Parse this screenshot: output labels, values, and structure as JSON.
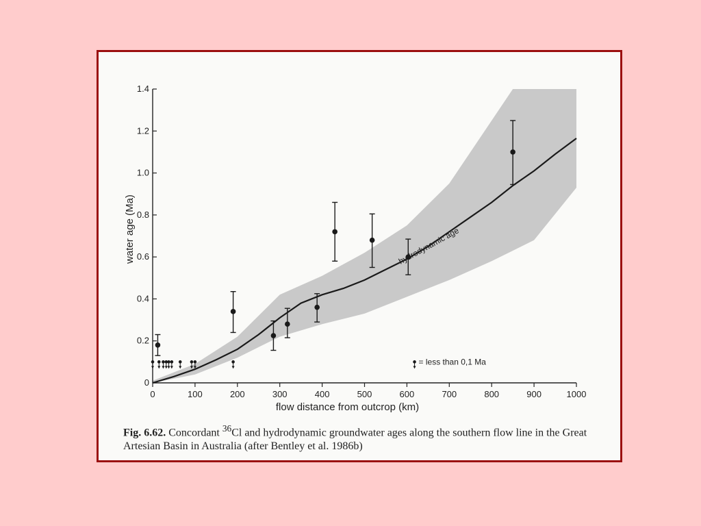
{
  "chart_data": {
    "type": "scatter",
    "xlabel": "flow distance from outcrop (km)",
    "ylabel": "water age (Ma)",
    "xlim": [
      0,
      1000
    ],
    "ylim": [
      0,
      1.4
    ],
    "x_ticks": [
      "0",
      "100",
      "200",
      "300",
      "400",
      "500",
      "600",
      "700",
      "800",
      "900",
      "1000"
    ],
    "y_ticks": [
      "0",
      "0.2",
      "0.4",
      "0.6",
      "0.8",
      "1.0",
      "1.2",
      "1.4"
    ],
    "x_tick_values": [
      0,
      100,
      200,
      300,
      400,
      500,
      600,
      700,
      800,
      900,
      1000
    ],
    "y_tick_values": [
      0,
      0.2,
      0.4,
      0.6,
      0.8,
      1.0,
      1.2,
      1.4
    ],
    "points": [
      {
        "x": 12,
        "y": 0.18,
        "low": 0.13,
        "high": 0.23
      },
      {
        "x": 190,
        "y": 0.34,
        "low": 0.24,
        "high": 0.435
      },
      {
        "x": 285,
        "y": 0.225,
        "low": 0.155,
        "high": 0.295
      },
      {
        "x": 318,
        "y": 0.28,
        "low": 0.215,
        "high": 0.355
      },
      {
        "x": 388,
        "y": 0.36,
        "low": 0.29,
        "high": 0.425
      },
      {
        "x": 430,
        "y": 0.72,
        "low": 0.58,
        "high": 0.86
      },
      {
        "x": 518,
        "y": 0.68,
        "low": 0.55,
        "high": 0.805
      },
      {
        "x": 603,
        "y": 0.6,
        "low": 0.515,
        "high": 0.685
      },
      {
        "x": 850,
        "y": 1.1,
        "low": 0.945,
        "high": 1.25
      }
    ],
    "below_limit_points_x": [
      0,
      15,
      25,
      32,
      38,
      45,
      65,
      92,
      100,
      190
    ],
    "below_limit_legend_x": 618,
    "below_limit_label": "= less than 0,1 Ma",
    "hydrodynamic_age": {
      "label": "hydrodynamic age",
      "x": [
        0,
        50,
        100,
        150,
        200,
        250,
        300,
        350,
        400,
        450,
        500,
        550,
        600,
        650,
        700,
        750,
        800,
        850,
        900,
        950,
        1000
      ],
      "y": [
        0.0,
        0.03,
        0.065,
        0.11,
        0.16,
        0.23,
        0.31,
        0.38,
        0.42,
        0.45,
        0.49,
        0.54,
        0.59,
        0.65,
        0.72,
        0.79,
        0.86,
        0.94,
        1.01,
        1.09,
        1.165
      ]
    },
    "uncertainty_band": {
      "x": [
        0,
        100,
        200,
        300,
        400,
        500,
        600,
        700,
        800,
        850,
        900,
        1000
      ],
      "upper": [
        0.01,
        0.09,
        0.22,
        0.42,
        0.51,
        0.62,
        0.75,
        0.95,
        1.25,
        1.4,
        1.4,
        1.4
      ],
      "lower": [
        0.0,
        0.04,
        0.12,
        0.22,
        0.28,
        0.33,
        0.41,
        0.49,
        0.58,
        0.63,
        0.68,
        0.93
      ]
    }
  },
  "caption": {
    "fig_label": "Fig. 6.62.",
    "text_before_sup": " Concordant ",
    "sup": "36",
    "text_after_sup": "Cl and hydrodynamic groundwater ages along the southern flow line in the Great Artesian Basin in Australia (after Bentley et al. 1986b)"
  }
}
